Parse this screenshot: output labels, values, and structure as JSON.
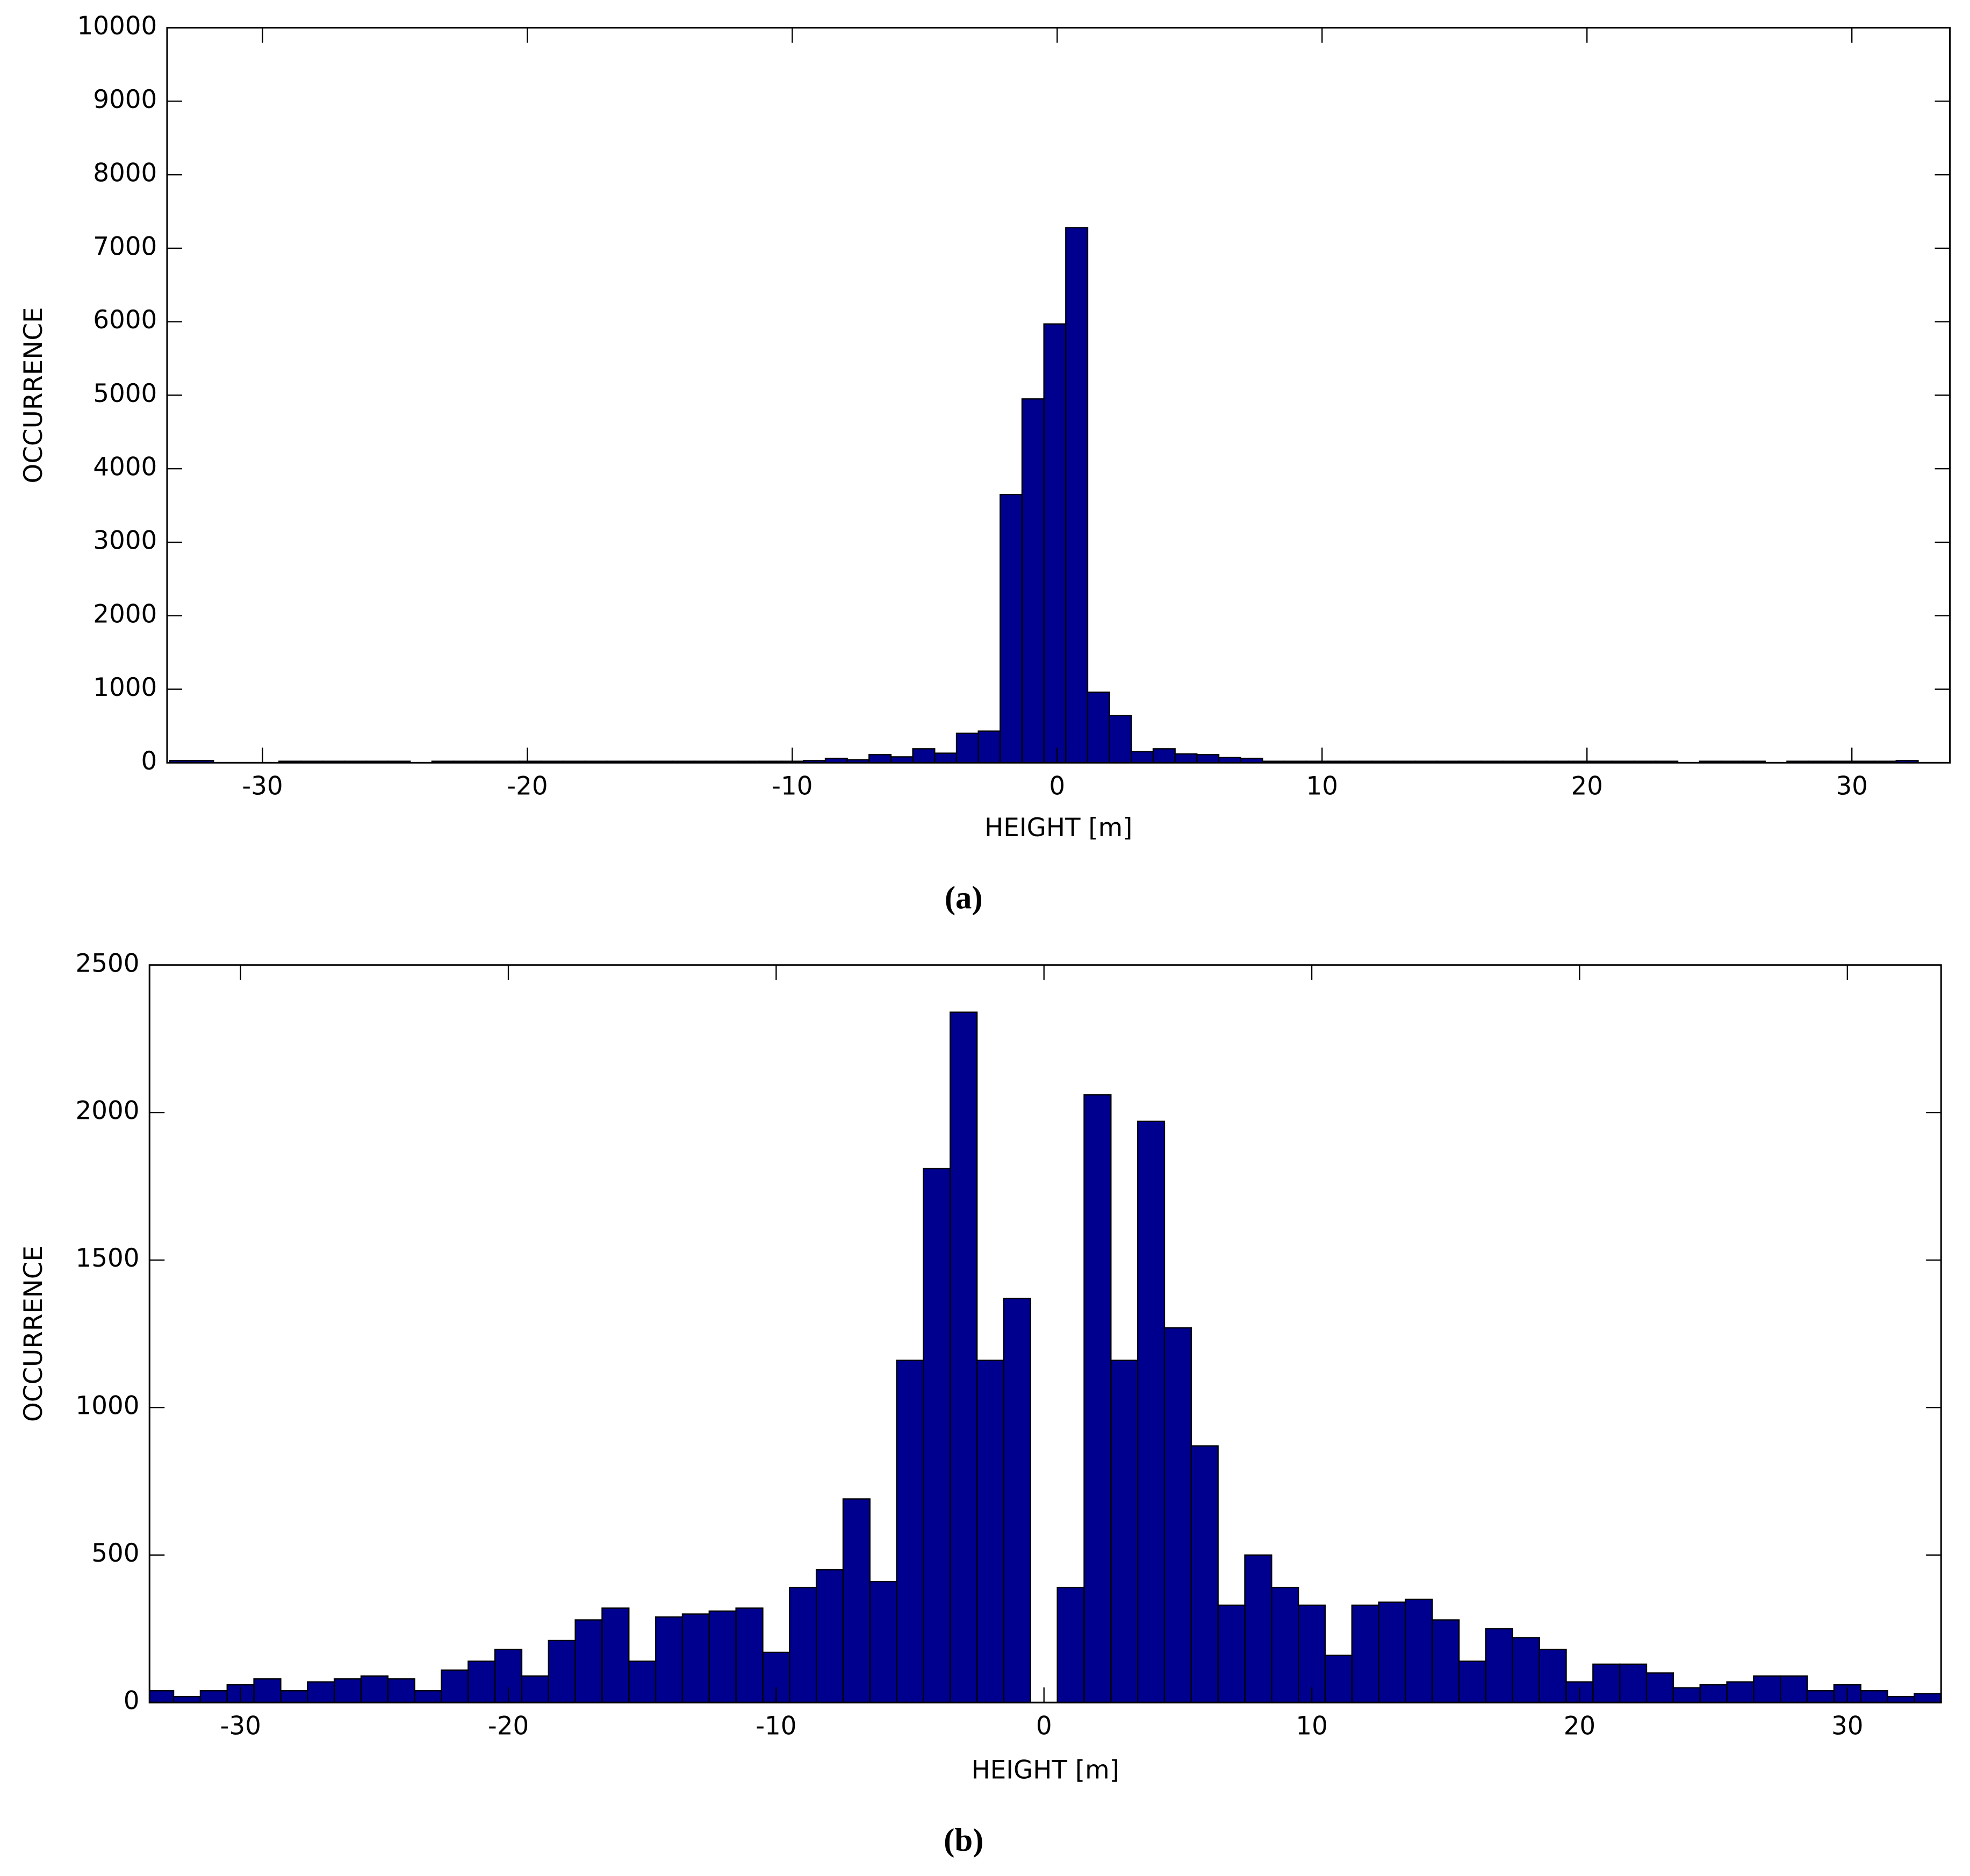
{
  "chart_data": [
    {
      "type": "histogram",
      "xlabel": "HEIGHT [m]",
      "ylabel": "OCCURRENCE",
      "caption": "(a)",
      "color": "#00008f",
      "bins": [
        -33.5,
        -32.675,
        -31.85,
        -31.025,
        -30.2,
        -29.375,
        -28.55,
        -27.725,
        -26.9,
        -26.075,
        -25.25,
        -24.425,
        -23.6,
        -22.775,
        -21.95,
        -21.125,
        -20.3,
        -19.475,
        -18.65,
        -17.825,
        -17,
        -16.175,
        -15.35,
        -14.525,
        -13.7,
        -12.875,
        -12.05,
        -11.225,
        -10.4,
        -9.575,
        -8.75,
        -7.925,
        -7.1,
        -6.275,
        -5.45,
        -4.625,
        -3.8,
        -2.975,
        -2.15,
        -1.325,
        -0.5,
        0.325,
        1.15,
        1.975,
        2.8,
        3.625,
        4.45,
        5.275,
        6.1,
        6.925,
        7.75,
        8.575,
        9.4,
        10.225,
        11.05,
        11.875,
        12.7,
        13.525,
        14.35,
        15.175,
        16,
        16.825,
        17.65,
        18.475,
        19.3,
        20.125,
        20.95,
        21.775,
        22.6,
        23.425,
        24.25,
        25.075,
        25.9,
        26.725,
        27.55,
        28.375,
        29.2,
        30.025,
        30.85,
        31.675,
        32.5
      ],
      "values": [
        30,
        30,
        0,
        0,
        0,
        20,
        20,
        20,
        20,
        20,
        20,
        0,
        20,
        20,
        20,
        20,
        20,
        20,
        20,
        20,
        20,
        20,
        20,
        20,
        20,
        20,
        20,
        20,
        20,
        30,
        60,
        40,
        110,
        80,
        190,
        130,
        400,
        430,
        3650,
        4950,
        5970,
        7280,
        960,
        640,
        150,
        190,
        120,
        110,
        70,
        60,
        20,
        20,
        20,
        20,
        20,
        20,
        20,
        20,
        20,
        20,
        20,
        20,
        20,
        20,
        20,
        20,
        20,
        20,
        20,
        0,
        20,
        20,
        20,
        0,
        20,
        20,
        20,
        20,
        20,
        30
      ],
      "xlim": [
        -33.6,
        33.7
      ],
      "xticks": [
        -30,
        -20,
        -10,
        0,
        10,
        20,
        30
      ],
      "ylim": [
        0,
        10000
      ],
      "yticks": [
        0,
        1000,
        2000,
        3000,
        4000,
        5000,
        6000,
        7000,
        8000,
        9000,
        10000
      ]
    },
    {
      "type": "histogram",
      "xlabel": "HEIGHT [m]",
      "ylabel": "OCCURRENCE",
      "caption": "(b)",
      "color": "#00008f",
      "bins": [
        -33.5,
        -32.5,
        -31.5,
        -30.5,
        -29.5,
        -28.5,
        -27.5,
        -26.5,
        -25.5,
        -24.5,
        -23.5,
        -22.5,
        -21.5,
        -20.5,
        -19.5,
        -18.5,
        -17.5,
        -16.5,
        -15.5,
        -14.5,
        -13.5,
        -12.5,
        -11.5,
        -10.5,
        -9.5,
        -8.5,
        -7.5,
        -6.5,
        -5.5,
        -4.5,
        -3.5,
        -2.5,
        -1.5,
        -0.5,
        0.5,
        1.5,
        2.5,
        3.5,
        4.5,
        5.5,
        6.5,
        7.5,
        8.5,
        9.5,
        10.5,
        11.5,
        12.5,
        13.5,
        14.5,
        15.5,
        16.5,
        17.5,
        18.5,
        19.5,
        20.5,
        21.5,
        22.5,
        23.5,
        24.5,
        25.5,
        26.5,
        27.5,
        28.5,
        29.5,
        30.5,
        31.5,
        32.5,
        33.5
      ],
      "values": [
        40,
        20,
        40,
        60,
        80,
        40,
        70,
        80,
        90,
        80,
        40,
        110,
        140,
        180,
        90,
        210,
        280,
        320,
        140,
        290,
        300,
        310,
        320,
        170,
        390,
        450,
        690,
        410,
        1160,
        1810,
        2340,
        1160,
        1370,
        0,
        390,
        2060,
        1160,
        1970,
        1270,
        870,
        330,
        500,
        390,
        330,
        160,
        330,
        340,
        350,
        280,
        140,
        250,
        220,
        180,
        70,
        130,
        130,
        100,
        50,
        60,
        70,
        90,
        90,
        40,
        60,
        40,
        20,
        30
      ],
      "xlim": [
        -33.4,
        33.5
      ],
      "xticks": [
        -30,
        -20,
        -10,
        0,
        10,
        20,
        30
      ],
      "ylim": [
        0,
        2500
      ],
      "yticks": [
        0,
        500,
        1000,
        1500,
        2000,
        2500
      ]
    }
  ]
}
